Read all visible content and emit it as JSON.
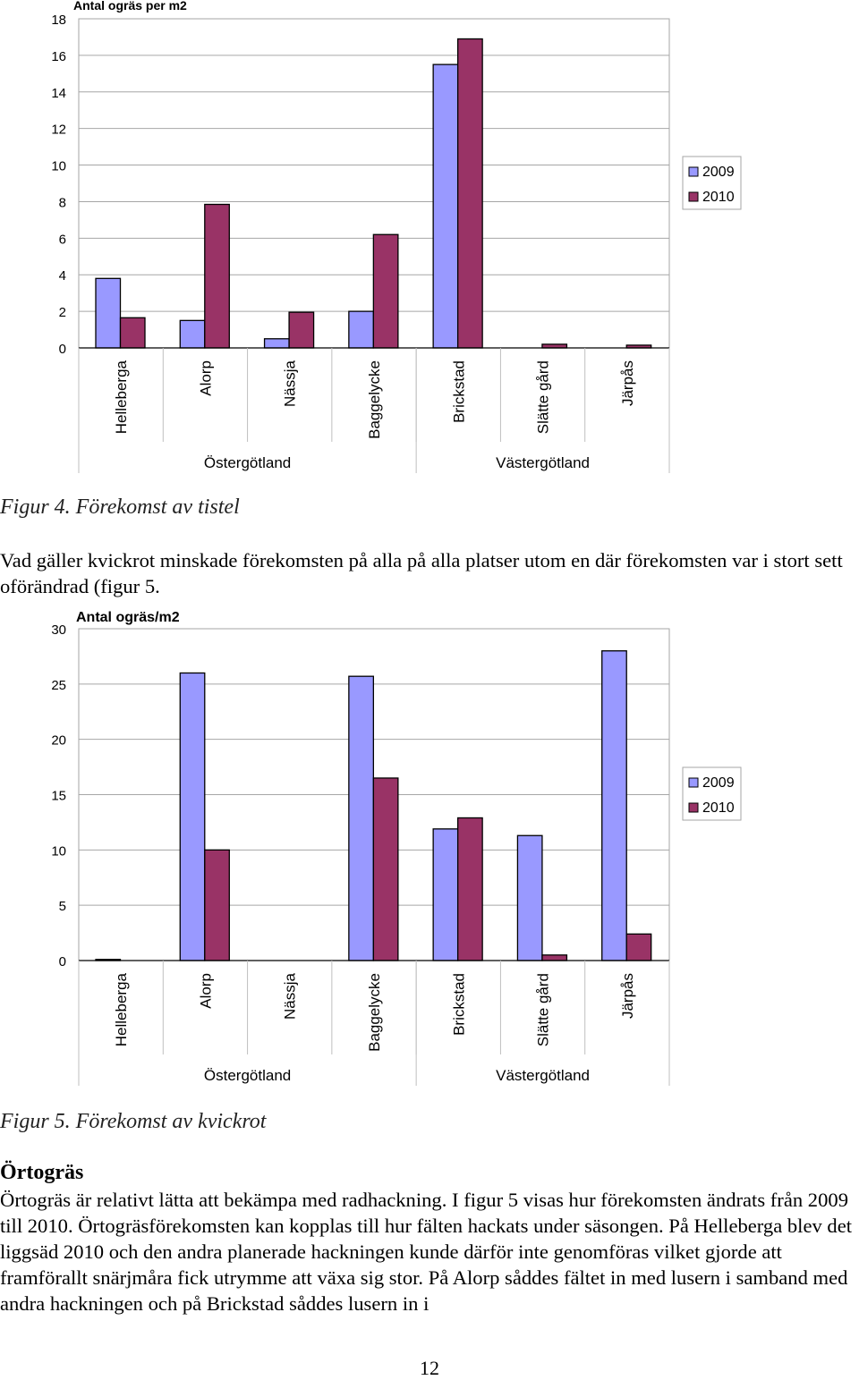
{
  "figure4": {
    "caption": "Figur 4. Förekomst av tistel",
    "chart_data": {
      "type": "bar",
      "title": "Antal ogräs per m2",
      "categories": [
        "Helleberga",
        "Alorp",
        "Nässja",
        "Baggelycke",
        "Brickstad",
        "Slätte gård",
        "Järpås"
      ],
      "groups": [
        {
          "label": "Östergötland",
          "categories": [
            "Helleberga",
            "Alorp",
            "Nässja",
            "Baggelycke"
          ]
        },
        {
          "label": "Västergötland",
          "categories": [
            "Brickstad",
            "Slätte gård",
            "Järpås"
          ]
        }
      ],
      "series": [
        {
          "name": "2009",
          "color": "#9999FF",
          "values": [
            3.8,
            1.5,
            0.5,
            2.0,
            15.5,
            0,
            0
          ]
        },
        {
          "name": "2010",
          "color": "#993366",
          "values": [
            1.65,
            7.85,
            1.95,
            6.2,
            16.9,
            0.2,
            0.15
          ]
        }
      ],
      "ylim": [
        0,
        18
      ],
      "yticks": [
        "0",
        "2",
        "4",
        "6",
        "8",
        "10",
        "12",
        "14",
        "16",
        "18"
      ],
      "grid": true,
      "legend_position": "right"
    }
  },
  "paragraph1": "Vad gäller kvickrot minskade förekomsten på alla på alla platser utom en där förekomsten var i stort sett oförändrad (figur 5.",
  "figure5": {
    "caption": "Figur 5. Förekomst av kvickrot",
    "chart_data": {
      "type": "bar",
      "title": "Antal ogräs/m2",
      "categories": [
        "Helleberga",
        "Alorp",
        "Nässja",
        "Baggelycke",
        "Brickstad",
        "Slätte gård",
        "Järpås"
      ],
      "groups": [
        {
          "label": "Östergötland",
          "categories": [
            "Helleberga",
            "Alorp",
            "Nässja",
            "Baggelycke"
          ]
        },
        {
          "label": "Västergötland",
          "categories": [
            "Brickstad",
            "Slätte gård",
            "Järpås"
          ]
        }
      ],
      "series": [
        {
          "name": "2009",
          "color": "#9999FF",
          "values": [
            0.1,
            26.0,
            0,
            25.7,
            11.9,
            11.3,
            28.0
          ]
        },
        {
          "name": "2010",
          "color": "#993366",
          "values": [
            0,
            10.0,
            0,
            16.5,
            12.9,
            0.5,
            2.4
          ]
        }
      ],
      "ylim": [
        0,
        30
      ],
      "yticks": [
        "0",
        "5",
        "10",
        "15",
        "20",
        "25",
        "30"
      ],
      "grid": true,
      "legend_position": "right"
    }
  },
  "section": {
    "heading": "Örtogräs",
    "body": "Örtogräs är relativt lätta att bekämpa med radhackning. I figur 5 visas hur förekomsten ändrats från 2009 till 2010. Örtogräsförekomsten kan kopplas till hur fälten hackats under säsongen. På Helleberga blev det liggsäd 2010 och den andra planerade hackningen kunde därför inte genomföras vilket gjorde att framförallt snärjmåra fick utrymme att växa sig stor. På Alorp såddes fältet in med lusern i samband med andra hackningen och på Brickstad såddes lusern in i"
  },
  "page_number": "12"
}
